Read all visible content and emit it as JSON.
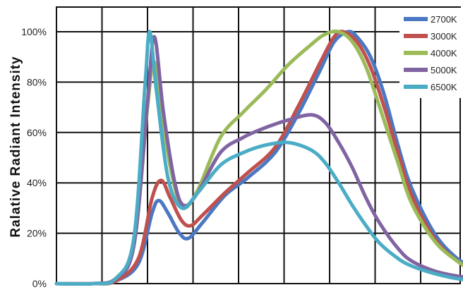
{
  "chart_data": {
    "type": "line",
    "title": "",
    "xlabel": "",
    "ylabel": "Ralative Radiant Intensity",
    "ylim": [
      0,
      100
    ],
    "y_ticks": [
      "0%",
      "20%",
      "40%",
      "60%",
      "80%",
      "100%"
    ],
    "x_range": [
      0,
      11
    ],
    "grid": true,
    "legend_position": "top-right",
    "series": [
      {
        "name": "2700K",
        "color": "#4A78C2",
        "x": [
          0,
          0.8,
          1.3,
          1.8,
          2.1,
          2.25,
          2.45,
          2.7,
          2.9,
          3.2,
          3.7,
          4.2,
          4.8,
          5.3,
          5.8,
          6.1,
          6.4,
          6.6,
          6.9,
          7.2,
          7.5,
          7.8,
          8.3,
          8.8,
          9.3,
          9.8,
          10.2
        ],
        "values": [
          0,
          0,
          1,
          8,
          28,
          33,
          28,
          20,
          18,
          24,
          35,
          42,
          52,
          67,
          85,
          96,
          100,
          98,
          90,
          75,
          55,
          38,
          20,
          10,
          5,
          2,
          0
        ]
      },
      {
        "name": "3000K",
        "color": "#C0504D",
        "x": [
          0,
          0.8,
          1.3,
          1.8,
          2.1,
          2.3,
          2.5,
          2.75,
          2.95,
          3.2,
          3.7,
          4.2,
          4.8,
          5.3,
          5.8,
          6.1,
          6.3,
          6.6,
          6.9,
          7.2,
          7.5,
          7.8,
          8.3,
          8.8,
          9.3,
          9.8,
          10.2
        ],
        "values": [
          0,
          0,
          1,
          10,
          34,
          41,
          34,
          25,
          23,
          27,
          36,
          44,
          54,
          70,
          88,
          98,
          100,
          96,
          86,
          70,
          52,
          35,
          18,
          9,
          4,
          1,
          0
        ]
      },
      {
        "name": "4000K",
        "color": "#9BBB59",
        "x": [
          0,
          0.8,
          1.3,
          1.7,
          2.0,
          2.15,
          2.35,
          2.6,
          2.8,
          3.1,
          3.6,
          4.1,
          4.6,
          5.1,
          5.6,
          5.9,
          6.2,
          6.5,
          6.8,
          7.1,
          7.5,
          7.8,
          8.3,
          8.8,
          9.3,
          9.8,
          10.2
        ],
        "values": [
          0,
          0,
          2,
          15,
          70,
          88,
          62,
          38,
          30,
          37,
          58,
          68,
          77,
          87,
          95,
          99,
          100,
          96,
          86,
          70,
          48,
          32,
          17,
          9,
          4,
          1,
          0
        ]
      },
      {
        "name": "5000K",
        "color": "#8064A2",
        "x": [
          0,
          0.8,
          1.3,
          1.7,
          2.0,
          2.15,
          2.35,
          2.6,
          2.8,
          3.1,
          3.6,
          4.1,
          4.6,
          5.1,
          5.6,
          5.9,
          6.2,
          6.5,
          6.8,
          7.1,
          7.5,
          7.8,
          8.3,
          8.8,
          9.3,
          9.8,
          10.2
        ],
        "values": [
          0,
          0,
          2,
          15,
          72,
          98,
          68,
          40,
          31,
          36,
          52,
          58,
          62,
          65,
          67,
          64,
          56,
          46,
          34,
          24,
          14,
          9,
          5,
          3,
          2,
          1,
          0
        ]
      },
      {
        "name": "6500K",
        "color": "#4BACC6",
        "x": [
          0,
          0.8,
          1.3,
          1.7,
          1.95,
          2.05,
          2.2,
          2.45,
          2.75,
          3.1,
          3.6,
          4.1,
          4.6,
          5.1,
          5.6,
          5.9,
          6.2,
          6.5,
          6.8,
          7.1,
          7.5,
          7.8,
          8.3,
          8.8,
          9.3,
          9.8,
          10.2
        ],
        "values": [
          0,
          0,
          2,
          18,
          80,
          100,
          76,
          42,
          30,
          36,
          47,
          52,
          55,
          56,
          53,
          48,
          40,
          31,
          23,
          16,
          10,
          7,
          4,
          2,
          1,
          1,
          0
        ]
      }
    ]
  }
}
